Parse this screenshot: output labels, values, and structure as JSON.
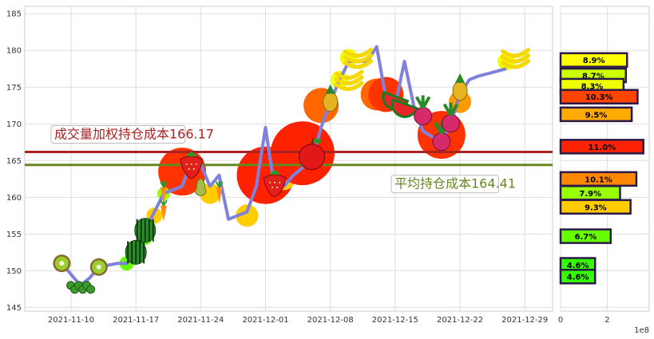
{
  "chart_data": [
    {
      "type": "line",
      "x_tick_labels": [
        "2021-11-10",
        "2021-11-17",
        "2021-11-24",
        "2021-12-01",
        "2021-12-08",
        "2021-12-15",
        "2021-12-22",
        "2021-12-29"
      ],
      "y_tick_labels": [
        "145",
        "150",
        "155",
        "160",
        "165",
        "170",
        "175",
        "180",
        "185"
      ],
      "ylim": [
        144.5,
        186
      ],
      "grid": true,
      "series": [
        {
          "color": "#8080dd",
          "values": [
            {
              "date": "2021-11-09",
              "v": 151.0
            },
            {
              "date": "2021-11-10",
              "v": 149.5
            },
            {
              "date": "2021-11-11",
              "v": 148.0
            },
            {
              "date": "2021-11-12",
              "v": 149.0
            },
            {
              "date": "2021-11-13",
              "v": 150.5
            },
            {
              "date": "2021-11-15",
              "v": 151.0
            },
            {
              "date": "2021-11-16",
              "v": 151.0
            },
            {
              "date": "2021-11-17",
              "v": 152.5
            },
            {
              "date": "2021-11-18",
              "v": 155.5
            },
            {
              "date": "2021-11-19",
              "v": 158.0
            },
            {
              "date": "2021-11-20",
              "v": 160.5
            },
            {
              "date": "2021-11-22",
              "v": 161.5
            },
            {
              "date": "2021-11-23",
              "v": 165.0
            },
            {
              "date": "2021-11-24",
              "v": 164.5
            },
            {
              "date": "2021-11-25",
              "v": 161.5
            },
            {
              "date": "2021-11-26",
              "v": 163.0
            },
            {
              "date": "2021-11-27",
              "v": 157.0
            },
            {
              "date": "2021-11-29",
              "v": 158.0
            },
            {
              "date": "2021-11-30",
              "v": 161.5
            },
            {
              "date": "2021-12-01",
              "v": 169.5
            },
            {
              "date": "2021-12-02",
              "v": 161.0
            },
            {
              "date": "2021-12-03",
              "v": 161.5
            },
            {
              "date": "2021-12-04",
              "v": 163.0
            },
            {
              "date": "2021-12-06",
              "v": 165.0
            },
            {
              "date": "2021-12-07",
              "v": 169.5
            },
            {
              "date": "2021-12-08",
              "v": 173.0
            },
            {
              "date": "2021-12-09",
              "v": 176.0
            },
            {
              "date": "2021-12-10",
              "v": 178.5
            },
            {
              "date": "2021-12-12",
              "v": 178.5
            },
            {
              "date": "2021-12-13",
              "v": 180.5
            },
            {
              "date": "2021-12-14",
              "v": 173.5
            },
            {
              "date": "2021-12-15",
              "v": 172.5
            },
            {
              "date": "2021-12-16",
              "v": 178.5
            },
            {
              "date": "2021-12-17",
              "v": 172.5
            },
            {
              "date": "2021-12-18",
              "v": 169.0
            },
            {
              "date": "2021-12-20",
              "v": 167.5
            },
            {
              "date": "2021-12-21",
              "v": 170.0
            },
            {
              "date": "2021-12-22",
              "v": 174.0
            },
            {
              "date": "2021-12-23",
              "v": 176.0
            },
            {
              "date": "2021-12-24",
              "v": 176.5
            },
            {
              "date": "2021-12-27",
              "v": 177.5
            }
          ]
        }
      ],
      "bubbles": [
        {
          "date": "2021-11-22",
          "v": 163.5,
          "size": 30,
          "color": "#ff3300"
        },
        {
          "date": "2021-11-25",
          "v": 160.5,
          "size": 13,
          "color": "#ffcc00"
        },
        {
          "date": "2021-11-29",
          "v": 157.5,
          "size": 14,
          "color": "#ffcc00"
        },
        {
          "date": "2021-12-01",
          "v": 163.0,
          "size": 36,
          "color": "#ff2200"
        },
        {
          "date": "2021-12-03",
          "v": 162.5,
          "size": 14,
          "color": "#ffcc00"
        },
        {
          "date": "2021-12-05",
          "v": 166.0,
          "size": 40,
          "color": "#ff2200"
        },
        {
          "date": "2021-12-07",
          "v": 172.5,
          "size": 22,
          "color": "#ff6600"
        },
        {
          "date": "2021-12-13",
          "v": 174.0,
          "size": 20,
          "color": "#ff6600"
        },
        {
          "date": "2021-12-14",
          "v": 174.0,
          "size": 22,
          "color": "#ff3300"
        },
        {
          "date": "2021-12-20",
          "v": 168.5,
          "size": 30,
          "color": "#ff3300"
        },
        {
          "date": "2021-12-22",
          "v": 173.0,
          "size": 14,
          "color": "#ff9900"
        },
        {
          "date": "2021-12-09",
          "v": 176.0,
          "size": 11,
          "color": "#eeff00"
        },
        {
          "date": "2021-12-10",
          "v": 179.0,
          "size": 11,
          "color": "#eeff00"
        },
        {
          "date": "2021-12-27",
          "v": 178.5,
          "size": 11,
          "color": "#eeff00"
        },
        {
          "date": "2021-11-18",
          "v": 154.5,
          "size": 9,
          "color": "#66ff00"
        },
        {
          "date": "2021-11-19",
          "v": 157.5,
          "size": 10,
          "color": "#ffcc00"
        },
        {
          "date": "2021-11-20",
          "v": 160.5,
          "size": 8,
          "color": "#99ff00"
        },
        {
          "date": "2021-11-09",
          "v": 151.0,
          "size": 9,
          "color": "#66ff00"
        },
        {
          "date": "2021-11-16",
          "v": 151.0,
          "size": 9,
          "color": "#66ff00"
        }
      ],
      "icons": [
        {
          "date": "2021-11-09",
          "v": 151.0,
          "icon": "kiwi"
        },
        {
          "date": "2021-11-11",
          "v": 148.0,
          "icon": "peas"
        },
        {
          "date": "2021-11-13",
          "v": 150.5,
          "icon": "kiwi"
        },
        {
          "date": "2021-11-17",
          "v": 152.5,
          "icon": "watermelon"
        },
        {
          "date": "2021-11-18",
          "v": 155.5,
          "icon": "watermelon"
        },
        {
          "date": "2021-11-20",
          "v": 158.0,
          "icon": "carrot"
        },
        {
          "date": "2021-11-20",
          "v": 160.5,
          "icon": "carrot"
        },
        {
          "date": "2021-11-23",
          "v": 164.5,
          "icon": "strawberry"
        },
        {
          "date": "2021-11-24",
          "v": 161.5,
          "icon": "pear"
        },
        {
          "date": "2021-11-26",
          "v": 160.5,
          "icon": "carrot"
        },
        {
          "date": "2021-12-02",
          "v": 162.0,
          "icon": "strawberry"
        },
        {
          "date": "2021-12-06",
          "v": 165.5,
          "icon": "apple"
        },
        {
          "date": "2021-12-08",
          "v": 173.0,
          "icon": "pineapple"
        },
        {
          "date": "2021-12-10",
          "v": 176.0,
          "icon": "banana"
        },
        {
          "date": "2021-12-11",
          "v": 179.0,
          "icon": "banana"
        },
        {
          "date": "2021-12-15",
          "v": 173.5,
          "icon": "watermelon-slice"
        },
        {
          "date": "2021-12-16",
          "v": 172.5,
          "icon": "watermelon-slice"
        },
        {
          "date": "2021-12-18",
          "v": 171.5,
          "icon": "radish"
        },
        {
          "date": "2021-12-20",
          "v": 168.0,
          "icon": "radish"
        },
        {
          "date": "2021-12-21",
          "v": 170.5,
          "icon": "radish"
        },
        {
          "date": "2021-12-22",
          "v": 174.5,
          "icon": "pineapple"
        },
        {
          "date": "2021-12-28",
          "v": 179.0,
          "icon": "banana"
        }
      ],
      "hlines": [
        {
          "v": 166.17,
          "color": "#aa2222",
          "label": "成交量加权持仓成本166.17",
          "label_color": "#aa2222",
          "label_pos": "left"
        },
        {
          "v": 164.41,
          "color": "#668822",
          "label": "平均持仓成本164.41",
          "label_color": "#668822",
          "label_pos": "right"
        }
      ]
    },
    {
      "type": "bar",
      "orientation": "horizontal",
      "x_tick_labels": [
        "0",
        "2"
      ],
      "x_multiplier": "1e8",
      "xlim": [
        0,
        3.8
      ],
      "ylim": [
        144.5,
        186
      ],
      "grid": true,
      "bars": [
        {
          "price": 178.7,
          "value": 2.85,
          "label": "8.9%",
          "color": "#ffff00"
        },
        {
          "price": 176.6,
          "value": 2.8,
          "label": "8.7%",
          "color": "#ccff00"
        },
        {
          "price": 175.2,
          "value": 2.7,
          "label": "8.3%",
          "color": "#eeff00"
        },
        {
          "price": 173.7,
          "value": 3.3,
          "label": "10.3%",
          "color": "#ff4400"
        },
        {
          "price": 171.3,
          "value": 3.05,
          "label": "9.5%",
          "color": "#ffaa00"
        },
        {
          "price": 166.9,
          "value": 3.55,
          "label": "11.0%",
          "color": "#ff2200"
        },
        {
          "price": 162.5,
          "value": 3.25,
          "label": "10.1%",
          "color": "#ff8800"
        },
        {
          "price": 160.6,
          "value": 2.55,
          "label": "7.9%",
          "color": "#99ff00"
        },
        {
          "price": 158.7,
          "value": 3.0,
          "label": "9.3%",
          "color": "#ffcc00"
        },
        {
          "price": 154.7,
          "value": 2.15,
          "label": "6.7%",
          "color": "#66ff00"
        },
        {
          "price": 150.8,
          "value": 1.48,
          "label": "4.6%",
          "color": "#33ff00"
        },
        {
          "price": 149.2,
          "value": 1.48,
          "label": "4.6%",
          "color": "#33ff00"
        }
      ]
    }
  ]
}
